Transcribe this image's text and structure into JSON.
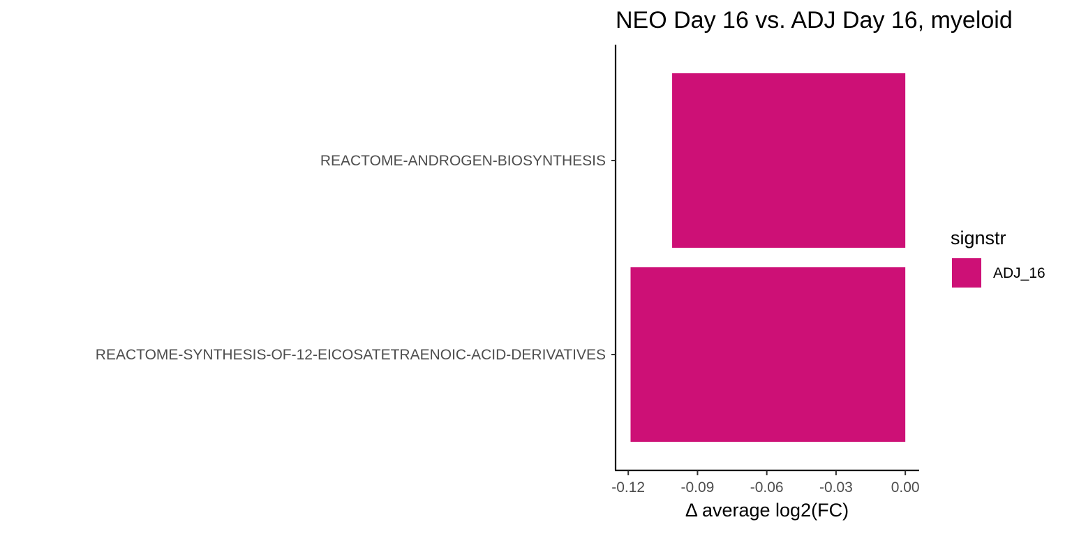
{
  "chart_data": {
    "type": "bar",
    "orientation": "horizontal",
    "title": "NEO Day 16 vs. ADJ Day 16, myeloid",
    "xlabel": "Δ  average log2(FC)",
    "ylabel": "",
    "categories": [
      "REACTOME-ANDROGEN-BIOSYNTHESIS",
      "REACTOME-SYNTHESIS-OF-12-EICOSATETRAENOIC-ACID-DERIVATIVES"
    ],
    "series": [
      {
        "name": "ADJ_16",
        "color": "#CD1076",
        "values": [
          -0.101,
          -0.119
        ]
      }
    ],
    "xlim": [
      -0.1255,
      0.006
    ],
    "xticks": [
      -0.12,
      -0.09,
      -0.06,
      -0.03,
      0.0
    ],
    "xtick_labels": [
      "-0.12",
      "-0.09",
      "-0.06",
      "-0.03",
      "0.00"
    ],
    "grid": false,
    "legend": {
      "title": "signstr",
      "placement": "right",
      "entries": [
        "ADJ_16"
      ]
    }
  }
}
